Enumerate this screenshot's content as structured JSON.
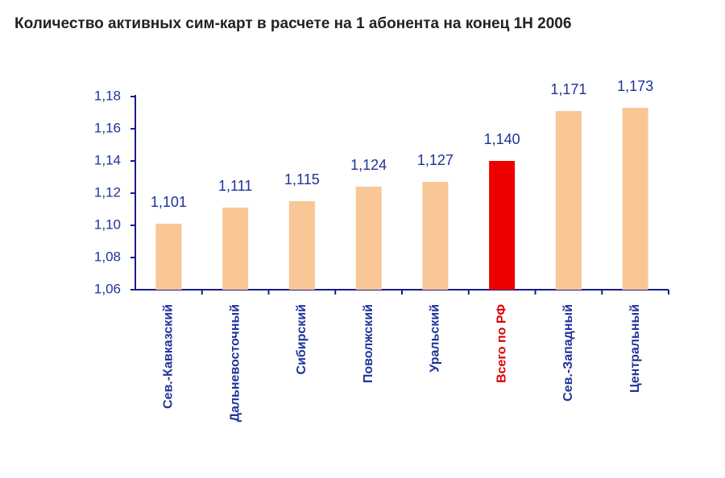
{
  "chart_data": {
    "type": "bar",
    "title": "Количество активных сим-карт в расчете на 1 абонента на конец 1Н 2006",
    "categories": [
      "Сев.-Кавказский",
      "Дальневосточный",
      "Сибирский",
      "Поволжский",
      "Уральский",
      "Всего по РФ",
      "Сев.-Западный",
      "Центральный"
    ],
    "values": [
      1.101,
      1.111,
      1.115,
      1.124,
      1.127,
      1.14,
      1.171,
      1.173
    ],
    "value_labels": [
      "1,101",
      "1,111",
      "1,115",
      "1,124",
      "1,127",
      "1,140",
      "1,171",
      "1,173"
    ],
    "colors": [
      "#f9c796",
      "#f9c796",
      "#f9c796",
      "#f9c796",
      "#f9c796",
      "#ee0000",
      "#f9c796",
      "#f9c796"
    ],
    "label_colors": [
      "#1f3399",
      "#1f3399",
      "#1f3399",
      "#1f3399",
      "#1f3399",
      "#dd0000",
      "#1f3399",
      "#1f3399"
    ],
    "ylim": [
      1.06,
      1.18
    ],
    "yticks": [
      {
        "value": 1.06,
        "label": "1,06"
      },
      {
        "value": 1.08,
        "label": "1,08"
      },
      {
        "value": 1.1,
        "label": "1,10"
      },
      {
        "value": 1.12,
        "label": "1,12"
      },
      {
        "value": 1.14,
        "label": "1,14"
      },
      {
        "value": 1.16,
        "label": "1,16"
      },
      {
        "value": 1.18,
        "label": "1,18"
      }
    ]
  }
}
